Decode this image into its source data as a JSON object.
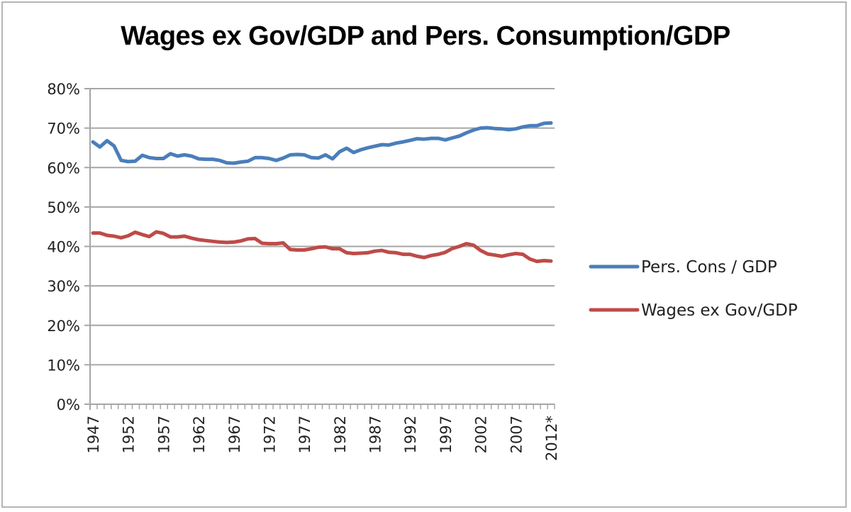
{
  "chart_data": {
    "type": "line",
    "title": "Wages ex Gov/GDP and Pers. Consumption/GDP",
    "xlabel": "",
    "ylabel": "",
    "ylim": [
      0,
      80
    ],
    "yticks": [
      "0%",
      "10%",
      "20%",
      "30%",
      "40%",
      "50%",
      "60%",
      "70%",
      "80%"
    ],
    "ytick_values": [
      0,
      10,
      20,
      30,
      40,
      50,
      60,
      70,
      80
    ],
    "x": [
      1947,
      1948,
      1949,
      1950,
      1951,
      1952,
      1953,
      1954,
      1955,
      1956,
      1957,
      1958,
      1959,
      1960,
      1961,
      1962,
      1963,
      1964,
      1965,
      1966,
      1967,
      1968,
      1969,
      1970,
      1971,
      1972,
      1973,
      1974,
      1975,
      1976,
      1977,
      1978,
      1979,
      1980,
      1981,
      1982,
      1983,
      1984,
      1985,
      1986,
      1987,
      1988,
      1989,
      1990,
      1991,
      1992,
      1993,
      1994,
      1995,
      1996,
      1997,
      1998,
      1999,
      2000,
      2001,
      2002,
      2003,
      2004,
      2005,
      2006,
      2007,
      2008,
      2009,
      2010,
      2011,
      2012
    ],
    "xtick_labels": [
      "1947",
      "1952",
      "1957",
      "1962",
      "1967",
      "1972",
      "1977",
      "1982",
      "1987",
      "1992",
      "1997",
      "2002",
      "2007",
      "2012*"
    ],
    "xtick_years": [
      1947,
      1952,
      1957,
      1962,
      1967,
      1972,
      1977,
      1982,
      1987,
      1992,
      1997,
      2002,
      2007,
      2012
    ],
    "grid": true,
    "legend_position": "right",
    "series": [
      {
        "name": "Pers. Cons / GDP",
        "color": "#4a7ebb",
        "values": [
          66.5,
          65.2,
          66.8,
          65.5,
          61.8,
          61.5,
          61.6,
          63.1,
          62.5,
          62.3,
          62.3,
          63.5,
          62.9,
          63.2,
          62.9,
          62.2,
          62.1,
          62.1,
          61.8,
          61.2,
          61.1,
          61.4,
          61.6,
          62.5,
          62.5,
          62.3,
          61.8,
          62.4,
          63.2,
          63.3,
          63.2,
          62.5,
          62.4,
          63.2,
          62.2,
          64.0,
          64.9,
          63.8,
          64.5,
          65.0,
          65.4,
          65.8,
          65.7,
          66.2,
          66.5,
          66.9,
          67.3,
          67.2,
          67.4,
          67.4,
          67.0,
          67.5,
          68.0,
          68.8,
          69.5,
          70.0,
          70.1,
          69.9,
          69.8,
          69.6,
          69.8,
          70.3,
          70.6,
          70.6,
          71.2,
          71.3
        ]
      },
      {
        "name": "Wages ex Gov/GDP",
        "color": "#be4b48",
        "values": [
          43.4,
          43.4,
          42.8,
          42.6,
          42.2,
          42.7,
          43.6,
          43.0,
          42.5,
          43.7,
          43.3,
          42.4,
          42.4,
          42.6,
          42.1,
          41.7,
          41.5,
          41.3,
          41.1,
          41.0,
          41.1,
          41.4,
          41.9,
          42.0,
          40.8,
          40.7,
          40.7,
          40.9,
          39.2,
          39.1,
          39.1,
          39.4,
          39.8,
          39.9,
          39.4,
          39.4,
          38.4,
          38.2,
          38.3,
          38.4,
          38.8,
          39.0,
          38.5,
          38.4,
          38.0,
          38.0,
          37.5,
          37.2,
          37.7,
          38.0,
          38.5,
          39.5,
          40.0,
          40.7,
          40.3,
          39.0,
          38.1,
          37.8,
          37.5,
          37.9,
          38.2,
          38.0,
          36.8,
          36.2,
          36.4,
          36.3
        ]
      }
    ]
  }
}
